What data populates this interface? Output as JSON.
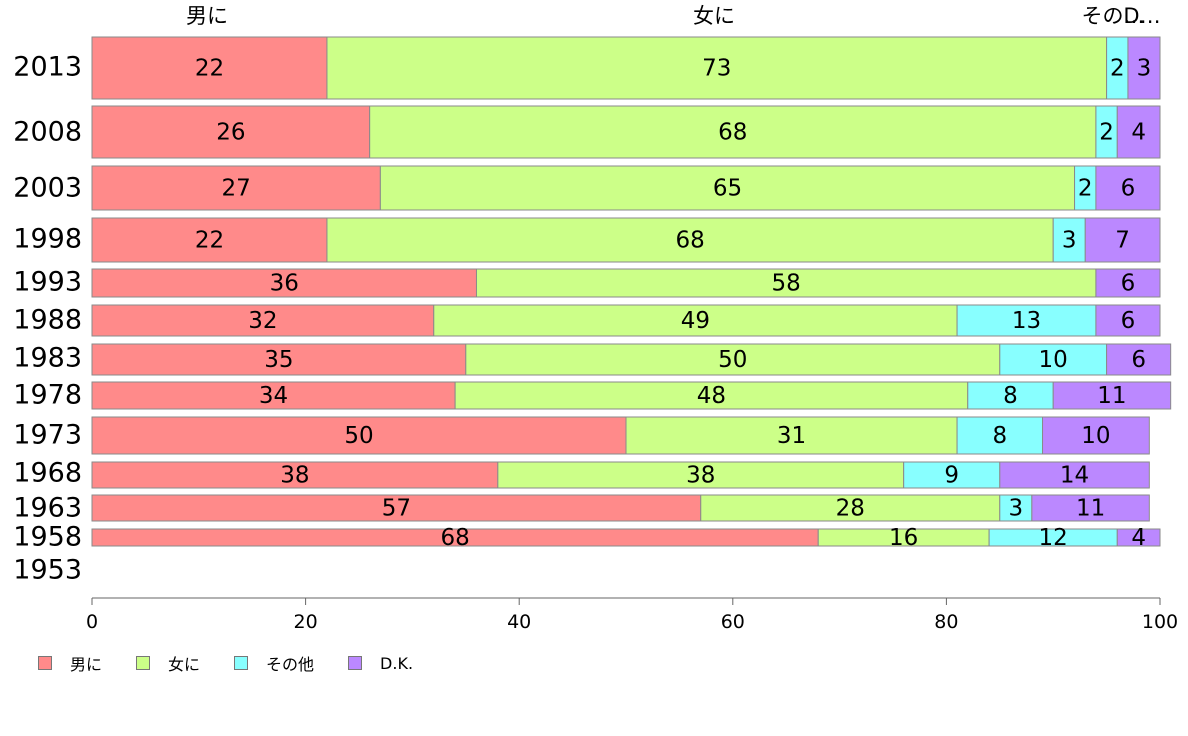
{
  "chart_data": {
    "type": "bar",
    "orientation": "horizontal",
    "stacked": true,
    "categories": [
      "2013",
      "2008",
      "2003",
      "1998",
      "1993",
      "1988",
      "1983",
      "1978",
      "1973",
      "1968",
      "1963",
      "1958",
      "1953"
    ],
    "series": [
      {
        "name": "男に",
        "color": "#ff8a8a",
        "values": [
          22,
          26,
          27,
          22,
          36,
          32,
          35,
          34,
          50,
          38,
          57,
          68,
          null
        ]
      },
      {
        "name": "女に",
        "color": "#ccff88",
        "values": [
          73,
          68,
          65,
          68,
          58,
          49,
          50,
          48,
          31,
          38,
          28,
          16,
          null
        ]
      },
      {
        "name": "その他",
        "color": "#88ffff",
        "values": [
          2,
          2,
          2,
          3,
          0,
          13,
          10,
          8,
          8,
          9,
          3,
          12,
          null
        ]
      },
      {
        "name": "D.K.",
        "color": "#bb88ff",
        "values": [
          3,
          4,
          6,
          7,
          6,
          6,
          6,
          11,
          10,
          14,
          11,
          4,
          null
        ]
      }
    ],
    "top_labels": [
      "男に",
      "女に",
      "その…",
      "D…"
    ],
    "x_ticks": [
      "0",
      "20",
      "40",
      "60",
      "80",
      "100"
    ],
    "xlim": [
      0,
      100
    ],
    "legend_position": "bottom-left"
  }
}
